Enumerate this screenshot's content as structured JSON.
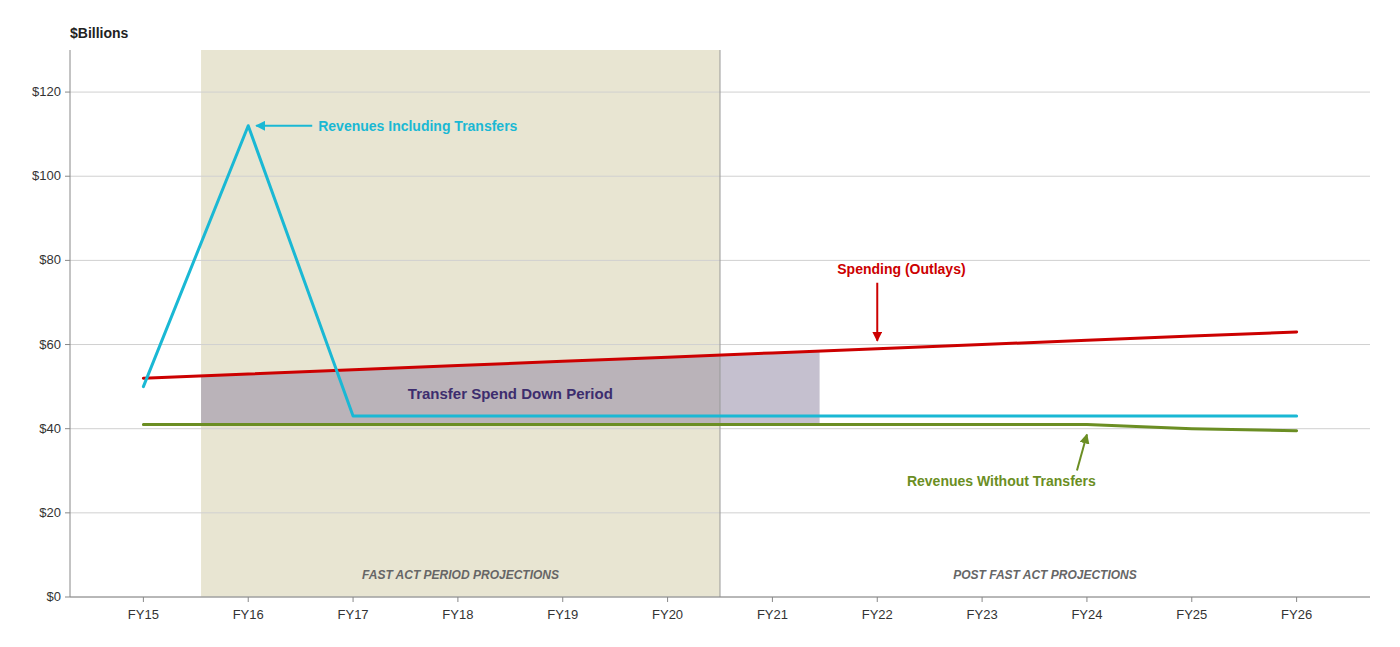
{
  "chart_data": {
    "type": "line",
    "ylabel": "$Billions",
    "x": [
      15,
      16,
      17,
      18,
      19,
      20,
      21,
      22,
      23,
      24,
      25,
      26
    ],
    "xlim": [
      14.3,
      26.7
    ],
    "xticks": [
      {
        "value": 15,
        "label": "FY15"
      },
      {
        "value": 16,
        "label": "FY16"
      },
      {
        "value": 17,
        "label": "FY17"
      },
      {
        "value": 18,
        "label": "FY18"
      },
      {
        "value": 19,
        "label": "FY19"
      },
      {
        "value": 20,
        "label": "FY20"
      },
      {
        "value": 21,
        "label": "FY21"
      },
      {
        "value": 22,
        "label": "FY22"
      },
      {
        "value": 23,
        "label": "FY23"
      },
      {
        "value": 24,
        "label": "FY24"
      },
      {
        "value": 25,
        "label": "FY25"
      },
      {
        "value": 26,
        "label": "FY26"
      }
    ],
    "ylim": [
      0,
      130
    ],
    "yticks": [
      {
        "value": 0,
        "label": "$0"
      },
      {
        "value": 20,
        "label": "$20"
      },
      {
        "value": 40,
        "label": "$40"
      },
      {
        "value": 60,
        "label": "$60"
      },
      {
        "value": 80,
        "label": "$80"
      },
      {
        "value": 100,
        "label": "$100"
      },
      {
        "value": 120,
        "label": "$120"
      }
    ],
    "grid": true,
    "series": [
      {
        "name": "Revenues Including Transfers",
        "color": "#1ab8d4",
        "values": [
          50,
          112,
          43,
          43,
          43,
          43,
          43,
          43,
          43,
          43,
          43,
          43
        ]
      },
      {
        "name": "Spending (Outlays)",
        "color": "#cc0000",
        "values": [
          52,
          53,
          54,
          55,
          56,
          57,
          58,
          59,
          60,
          61,
          62,
          63
        ]
      },
      {
        "name": "Revenues Without Transfers",
        "color": "#6b8e23",
        "values": [
          41,
          41,
          41,
          41,
          41,
          41,
          41,
          41,
          41,
          41,
          40,
          39.5
        ]
      }
    ],
    "periods": [
      {
        "label": "FAST ACT PERIOD PROJECTIONS",
        "start": 15.55,
        "end": 20.5,
        "color": "#e8e5d2"
      },
      {
        "label": "POST FAST ACT PROJECTIONS",
        "start": 20.5,
        "end": 26.7
      }
    ],
    "divider": 20.5,
    "spend_down": {
      "label": "Transfer Spend Down Period",
      "start": 15.55,
      "end": 21.45,
      "color": "#8b82a0"
    }
  }
}
